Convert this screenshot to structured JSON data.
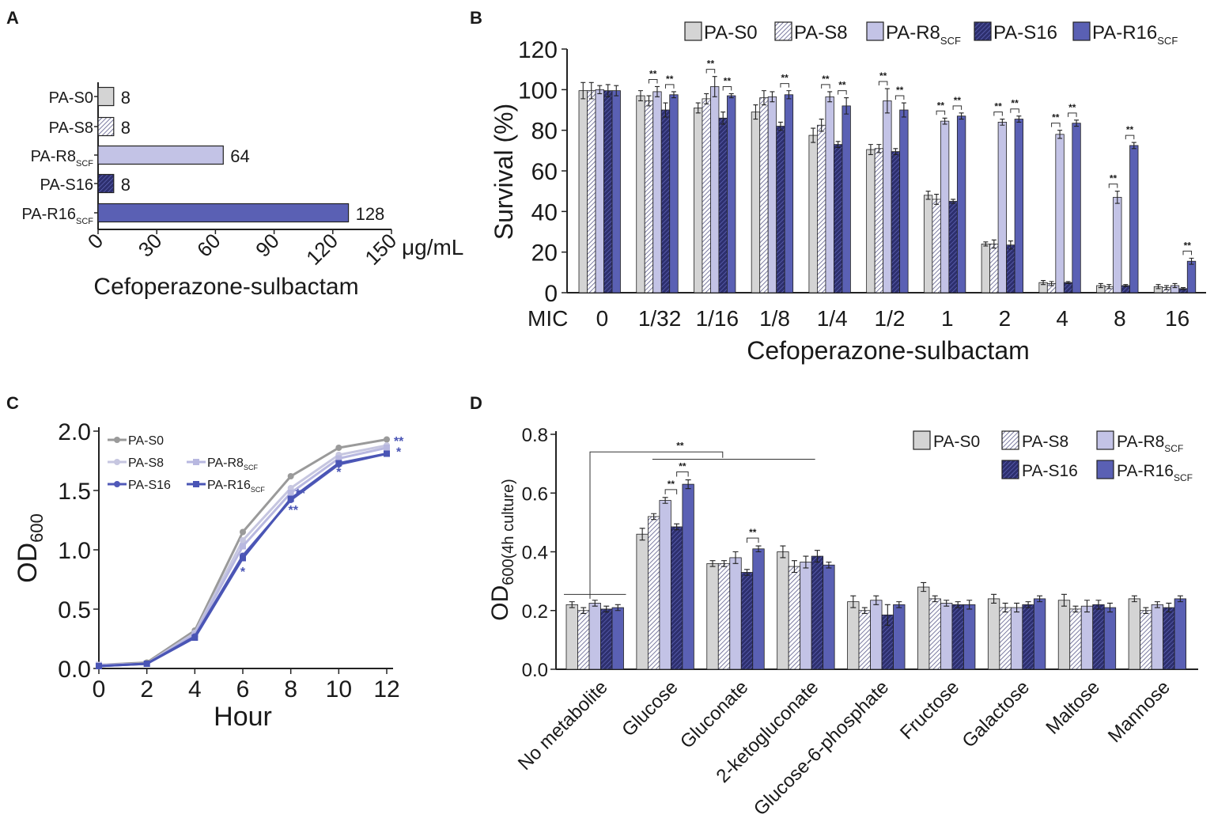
{
  "figure": {
    "panel_labels": [
      "A",
      "B",
      "C",
      "D"
    ],
    "strains": [
      {
        "name": "PA-S0",
        "color": "#d4d4d4",
        "pattern": "solid"
      },
      {
        "name": "PA-S8",
        "color": "#8f8fb8",
        "pattern": "hatch-light"
      },
      {
        "name": "PA-R8",
        "sub": "SCF",
        "color": "#c3c3e6",
        "pattern": "solid"
      },
      {
        "name": "PA-S16",
        "color": "#3c3f8c",
        "pattern": "hatch-dark"
      },
      {
        "name": "PA-R16",
        "sub": "SCF",
        "color": "#5a60b4",
        "pattern": "solid"
      }
    ]
  },
  "chart_data": [
    {
      "panel": "A",
      "type": "bar",
      "orientation": "horizontal",
      "categories": [
        {
          "name": "PA-S0",
          "sub": ""
        },
        {
          "name": "PA-S8",
          "sub": ""
        },
        {
          "name": "PA-R8",
          "sub": "SCF"
        },
        {
          "name": "PA-S16",
          "sub": ""
        },
        {
          "name": "PA-R16",
          "sub": "SCF"
        }
      ],
      "values": [
        8,
        8,
        64,
        8,
        128
      ],
      "xlim": [
        0,
        150
      ],
      "xticks": [
        0,
        30,
        60,
        90,
        120,
        150
      ],
      "unit": "μg/mL",
      "xlabel": "Cefoperazone-sulbactam"
    },
    {
      "panel": "B",
      "type": "bar",
      "ylabel": "Survival (%)",
      "xlabel": "Cefoperazone-sulbactam",
      "x_prefix": "MIC",
      "ylim": [
        0,
        120
      ],
      "yticks": [
        0,
        20,
        40,
        60,
        80,
        100,
        120
      ],
      "categories": [
        "0",
        "1/32",
        "1/16",
        "1/8",
        "1/4",
        "1/2",
        "1",
        "2",
        "4",
        "8",
        "16"
      ],
      "series": [
        {
          "name": "PA-S0",
          "values": [
            99.5,
            97,
            91,
            89,
            77.5,
            70.5,
            48,
            24,
            5,
            3.5,
            3
          ],
          "errors": [
            4,
            2.5,
            2.5,
            3.5,
            3.5,
            2.5,
            2,
            1,
            1,
            1,
            1
          ]
        },
        {
          "name": "PA-S8",
          "values": [
            99.5,
            94.5,
            95.5,
            96,
            82.5,
            71,
            46,
            24,
            4.5,
            3,
            2.5
          ],
          "errors": [
            4,
            2.5,
            2.5,
            3.5,
            3,
            2,
            2.5,
            2,
            1,
            1,
            1
          ]
        },
        {
          "name": "PA-R8",
          "sub": "SCF",
          "values": [
            100,
            99,
            101.5,
            96.5,
            96.5,
            94.5,
            84.5,
            84,
            78,
            47,
            3.5
          ],
          "errors": [
            2,
            2.5,
            5,
            2.5,
            2.5,
            6,
            1.5,
            1.5,
            2,
            3,
            1
          ]
        },
        {
          "name": "PA-S16",
          "values": [
            99.5,
            90,
            86,
            82,
            73,
            69.5,
            45,
            23.5,
            5,
            3.5,
            2
          ],
          "errors": [
            3,
            3.5,
            3,
            2,
            1.5,
            1.5,
            1,
            2,
            0.5,
            0.5,
            0.5
          ]
        },
        {
          "name": "PA-R16",
          "sub": "SCF",
          "values": [
            99.5,
            97.5,
            97,
            97.5,
            92,
            90,
            87,
            85.5,
            83.5,
            72.5,
            15.5
          ],
          "errors": [
            2.5,
            1.5,
            1,
            2,
            4,
            3.5,
            1.5,
            1.5,
            1.5,
            1.5,
            1.5
          ]
        }
      ],
      "significance": [
        {
          "cat": 1,
          "from": 1,
          "to": 2,
          "label": "**"
        },
        {
          "cat": 1,
          "from": 3,
          "to": 4,
          "label": "**"
        },
        {
          "cat": 2,
          "from": 1,
          "to": 2,
          "label": "**"
        },
        {
          "cat": 2,
          "from": 3,
          "to": 4,
          "label": "**"
        },
        {
          "cat": 3,
          "from": 3,
          "to": 4,
          "label": "**"
        },
        {
          "cat": 4,
          "from": 1,
          "to": 2,
          "label": "**"
        },
        {
          "cat": 4,
          "from": 3,
          "to": 4,
          "label": "**"
        },
        {
          "cat": 5,
          "from": 1,
          "to": 2,
          "label": "**"
        },
        {
          "cat": 5,
          "from": 3,
          "to": 4,
          "label": "**"
        },
        {
          "cat": 6,
          "from": 1,
          "to": 2,
          "label": "**"
        },
        {
          "cat": 6,
          "from": 3,
          "to": 4,
          "label": "**"
        },
        {
          "cat": 7,
          "from": 1,
          "to": 2,
          "label": "**"
        },
        {
          "cat": 7,
          "from": 3,
          "to": 4,
          "label": "**"
        },
        {
          "cat": 8,
          "from": 1,
          "to": 2,
          "label": "**"
        },
        {
          "cat": 8,
          "from": 3,
          "to": 4,
          "label": "**"
        },
        {
          "cat": 9,
          "from": 1,
          "to": 2,
          "label": "**"
        },
        {
          "cat": 9,
          "from": 3,
          "to": 4,
          "label": "**"
        },
        {
          "cat": 10,
          "from": 3,
          "to": 4,
          "label": "**"
        }
      ]
    },
    {
      "panel": "C",
      "type": "line",
      "xlabel": "Hour",
      "ylabel": "OD",
      "ylabel_sub": "600",
      "x": [
        0,
        2,
        4,
        6,
        8,
        10,
        12
      ],
      "xlim": [
        0,
        12
      ],
      "ylim": [
        0,
        2.0
      ],
      "yticks": [
        "0.0",
        "0.5",
        "1.0",
        "1.5",
        "2.0"
      ],
      "xticks": [
        "0",
        "2",
        "4",
        "6",
        "8",
        "10",
        "12"
      ],
      "series": [
        {
          "name": "PA-S0",
          "color": "#9a9a9a",
          "marker": "circle",
          "values": [
            0.03,
            0.05,
            0.32,
            1.15,
            1.62,
            1.86,
            1.93
          ]
        },
        {
          "name": "PA-S8",
          "color": "#c6c6e0",
          "marker": "circle",
          "values": [
            0.03,
            0.04,
            0.3,
            1.08,
            1.52,
            1.8,
            1.88
          ]
        },
        {
          "name": "PA-R8",
          "sub": "SCF",
          "color": "#b8b8e0",
          "marker": "square",
          "values": [
            0.03,
            0.04,
            0.29,
            1.03,
            1.48,
            1.77,
            1.86
          ]
        },
        {
          "name": "PA-S16",
          "color": "#5059b8",
          "marker": "circle",
          "values": [
            0.02,
            0.04,
            0.27,
            0.95,
            1.42,
            1.72,
            1.81
          ]
        },
        {
          "name": "PA-R16",
          "sub": "SCF",
          "color": "#4a55b5",
          "marker": "square",
          "values": [
            0.02,
            0.04,
            0.26,
            0.93,
            1.43,
            1.73,
            1.81
          ]
        }
      ],
      "annotations": [
        {
          "x": 6,
          "y": 0.78,
          "label": "*"
        },
        {
          "x": 8.4,
          "y": 1.44,
          "label": "**"
        },
        {
          "x": 8.1,
          "y": 1.3,
          "label": "**"
        },
        {
          "x": 10,
          "y": 1.62,
          "label": "*"
        },
        {
          "x": 12.5,
          "y": 1.88,
          "label": "**"
        },
        {
          "x": 12.5,
          "y": 1.79,
          "label": "*"
        }
      ]
    },
    {
      "panel": "D",
      "type": "bar",
      "ylabel": "OD",
      "ylabel_sub": "600(4h culture)",
      "ylim": [
        0,
        0.8
      ],
      "yticks": [
        "0.0",
        "0.2",
        "0.4",
        "0.6",
        "0.8"
      ],
      "categories": [
        "No metabolite",
        "Glucose",
        "Gluconate",
        "2-ketogluconate",
        "Glucose-6-phosphate",
        "Fructose",
        "Galactose",
        "Maltose",
        "Mannose"
      ],
      "series": [
        {
          "name": "PA-S0",
          "values": [
            0.22,
            0.46,
            0.36,
            0.4,
            0.23,
            0.28,
            0.24,
            0.235,
            0.24
          ],
          "errors": [
            0.01,
            0.02,
            0.01,
            0.02,
            0.02,
            0.015,
            0.015,
            0.02,
            0.01
          ]
        },
        {
          "name": "PA-S8",
          "values": [
            0.2,
            0.52,
            0.36,
            0.35,
            0.2,
            0.24,
            0.21,
            0.205,
            0.2
          ],
          "errors": [
            0.01,
            0.01,
            0.01,
            0.02,
            0.01,
            0.01,
            0.015,
            0.01,
            0.01
          ]
        },
        {
          "name": "PA-R8",
          "sub": "SCF",
          "values": [
            0.225,
            0.575,
            0.38,
            0.365,
            0.235,
            0.225,
            0.21,
            0.215,
            0.22
          ],
          "errors": [
            0.01,
            0.01,
            0.02,
            0.02,
            0.015,
            0.01,
            0.015,
            0.02,
            0.01
          ]
        },
        {
          "name": "PA-S16",
          "values": [
            0.205,
            0.485,
            0.33,
            0.385,
            0.185,
            0.22,
            0.22,
            0.22,
            0.21
          ],
          "errors": [
            0.01,
            0.01,
            0.01,
            0.02,
            0.035,
            0.01,
            0.01,
            0.015,
            0.015
          ]
        },
        {
          "name": "PA-R16",
          "sub": "SCF",
          "values": [
            0.21,
            0.63,
            0.41,
            0.355,
            0.22,
            0.22,
            0.24,
            0.21,
            0.24
          ],
          "errors": [
            0.01,
            0.015,
            0.01,
            0.01,
            0.01,
            0.015,
            0.01,
            0.015,
            0.01
          ]
        }
      ],
      "significance": [
        {
          "cat": 1,
          "from": 2,
          "to": 3,
          "label": "**"
        },
        {
          "cat": 1,
          "from": 3,
          "to": 4,
          "label": "**"
        },
        {
          "cat": 2,
          "from": 3,
          "to": 4,
          "label": "**"
        },
        {
          "from_cat": 0,
          "to_cat": 2,
          "label": "**"
        }
      ]
    }
  ]
}
